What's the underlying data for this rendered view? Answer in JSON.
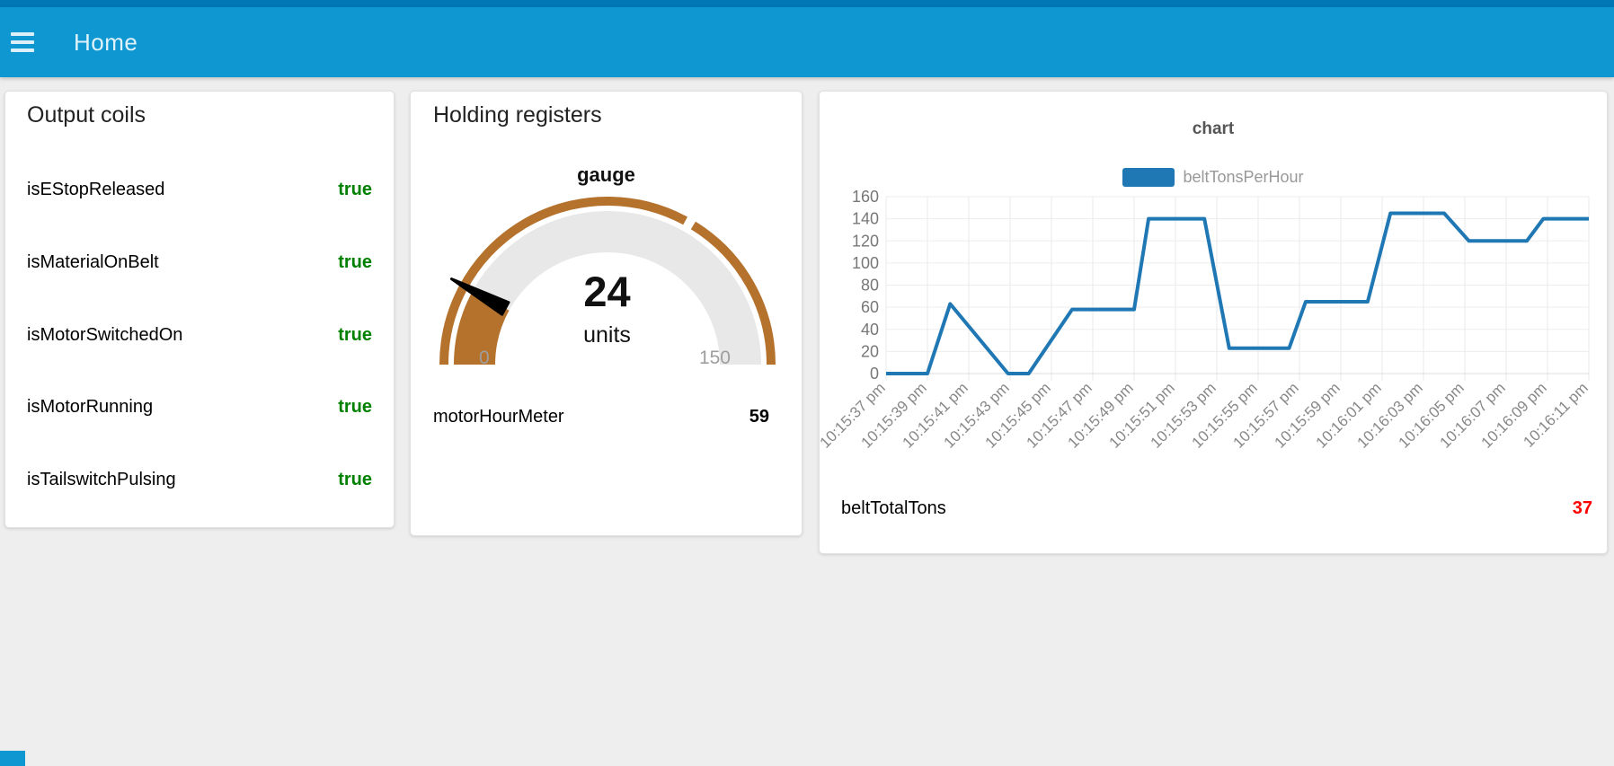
{
  "header": {
    "title": "Home",
    "menu_icon": "hamburger-icon",
    "color": "#0f97d2"
  },
  "colors": {
    "header_blue": "#0f97d2",
    "background": "#eeeeee",
    "true_green": "#008000",
    "alert_red": "#ff0000",
    "gauge_brown": "#b5722d",
    "gauge_track": "#e8e8e8",
    "chart_blue": "#1f77b4",
    "grid": "#e9e9e9",
    "axis_text": "#777777"
  },
  "cards": {
    "output_coils": {
      "title": "Output coils",
      "items": [
        {
          "label": "isEStopReleased",
          "value": "true"
        },
        {
          "label": "isMaterialOnBelt",
          "value": "true"
        },
        {
          "label": "isMotorSwitchedOn",
          "value": "true"
        },
        {
          "label": "isMotorRunning",
          "value": "true"
        },
        {
          "label": "isTailswitchPulsing",
          "value": "true"
        }
      ]
    },
    "holding_registers": {
      "title": "Holding registers",
      "rows": [
        {
          "label": "motorHourMeter",
          "value": "59"
        }
      ]
    },
    "chart": {
      "rows": [
        {
          "label": "beltTotalTons",
          "value": "37"
        }
      ]
    }
  },
  "chart_data": [
    {
      "type": "gauge",
      "title": "gauge",
      "value": 24,
      "units": "units",
      "min": 0,
      "max": 150,
      "sector_break": 100,
      "arc_color": "#b5722d",
      "track_color": "#e8e8e8",
      "needle_color": "#000000"
    },
    {
      "type": "line",
      "title": "chart",
      "legend": [
        "beltTonsPerHour"
      ],
      "legend_position": "top",
      "series": [
        {
          "name": "beltTonsPerHour",
          "color": "#1f77b4",
          "points": [
            [
              0,
              0
            ],
            [
              2,
              0
            ],
            [
              3.1,
              63
            ],
            [
              5.9,
              0
            ],
            [
              6.9,
              0
            ],
            [
              9,
              58
            ],
            [
              12,
              58
            ],
            [
              12.7,
              140
            ],
            [
              15.4,
              140
            ],
            [
              16.6,
              23
            ],
            [
              19.5,
              23
            ],
            [
              20.3,
              65
            ],
            [
              23.3,
              65
            ],
            [
              24.4,
              145
            ],
            [
              27,
              145
            ],
            [
              28.2,
              120
            ],
            [
              31,
              120
            ],
            [
              31.8,
              140
            ],
            [
              34,
              140
            ]
          ]
        }
      ],
      "x_tick_labels": [
        "10:15:37 pm",
        "10:15:39 pm",
        "10:15:41 pm",
        "10:15:43 pm",
        "10:15:45 pm",
        "10:15:47 pm",
        "10:15:49 pm",
        "10:15:51 pm",
        "10:15:53 pm",
        "10:15:55 pm",
        "10:15:57 pm",
        "10:15:59 pm",
        "10:16:01 pm",
        "10:16:03 pm",
        "10:16:05 pm",
        "10:16:07 pm",
        "10:16:09 pm",
        "10:16:11 pm"
      ],
      "x_seconds_range": [
        0,
        34
      ],
      "y_ticks": [
        0,
        20,
        40,
        60,
        80,
        100,
        120,
        140,
        160
      ],
      "ylim": [
        0,
        160
      ],
      "grid": true
    }
  ]
}
